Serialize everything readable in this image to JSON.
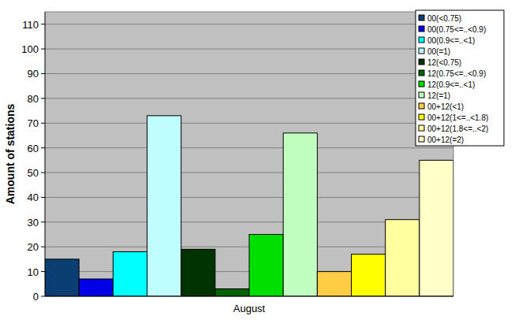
{
  "chart_data": {
    "type": "bar",
    "y_label": "Amount of stations",
    "categories": [
      "August"
    ],
    "series": [
      {
        "name": "00(<0.75)",
        "color": "#0b3f73",
        "values": [
          15
        ]
      },
      {
        "name": "00(0.75<=..<0.9)",
        "color": "#0000e8",
        "values": [
          7
        ]
      },
      {
        "name": "00(0.9<=..<1)",
        "color": "#00ffff",
        "values": [
          18
        ]
      },
      {
        "name": "00(=1)",
        "color": "#c0ffff",
        "values": [
          73
        ]
      },
      {
        "name": "12(<0.75)",
        "color": "#003300",
        "values": [
          19
        ]
      },
      {
        "name": "12(0.75<=..<0.9)",
        "color": "#006400",
        "values": [
          3
        ]
      },
      {
        "name": "12(0.9<=..<1)",
        "color": "#00e000",
        "values": [
          25
        ]
      },
      {
        "name": "12(=1)",
        "color": "#c0ffc0",
        "values": [
          66
        ]
      },
      {
        "name": "00+12(<1)",
        "color": "#ffcc44",
        "values": [
          10
        ]
      },
      {
        "name": "00+12(1<=..<1.8)",
        "color": "#ffff00",
        "values": [
          17
        ]
      },
      {
        "name": "00+12(1.8<=..<2)",
        "color": "#ffffa0",
        "values": [
          31
        ]
      },
      {
        "name": "00+12(=2)",
        "color": "#ffffc8",
        "values": [
          55
        ]
      }
    ],
    "ylim": [
      0,
      115
    ],
    "yticks": [
      0,
      10,
      20,
      30,
      40,
      50,
      60,
      70,
      80,
      90,
      100,
      110
    ],
    "grid": true,
    "legend": "top-right"
  }
}
